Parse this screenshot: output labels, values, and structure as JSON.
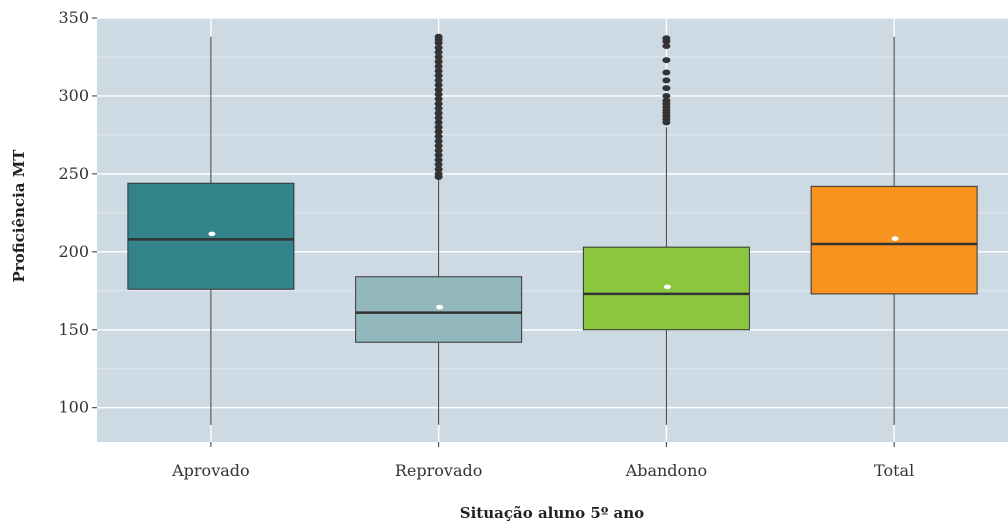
{
  "chart_data": {
    "type": "box",
    "title": "",
    "xlabel": "Situação aluno 5º ano",
    "ylabel": "Proficiência MT",
    "ylim": [
      78,
      350
    ],
    "yticks": [
      100,
      150,
      200,
      250,
      300,
      350
    ],
    "yticks_major_labeled": true,
    "grid": true,
    "legend": "none",
    "background_color": "#cddae4",
    "categories": [
      "Aprovado",
      "Reprovado",
      "Abandono",
      "Total"
    ],
    "boxes": [
      {
        "name": "Aprovado",
        "color": "#33838b",
        "whisker_low": 89,
        "q1": 176,
        "median": 208,
        "q3": 244,
        "whisker_high": 338,
        "mean": 211.5,
        "outliers": []
      },
      {
        "name": "Reprovado",
        "color": "#92b8bd",
        "whisker_low": 89,
        "q1": 142,
        "median": 161,
        "q3": 184,
        "whisker_high": 246,
        "mean": 164.5,
        "outliers": [
          248,
          250,
          253,
          256,
          259,
          262,
          265,
          268,
          271,
          274,
          277,
          280,
          283,
          286,
          289,
          292,
          295,
          298,
          301,
          304,
          307,
          310,
          313,
          316,
          319,
          322,
          325,
          328,
          331,
          334,
          336,
          338
        ]
      },
      {
        "name": "Abandono",
        "color": "#8cc63e",
        "whisker_low": 89,
        "q1": 150,
        "median": 173,
        "q3": 203,
        "whisker_high": 280,
        "mean": 177.5,
        "outliers": [
          283,
          285,
          287,
          289,
          291,
          293,
          295,
          297,
          300,
          305,
          310,
          315,
          323,
          332,
          335,
          337
        ]
      },
      {
        "name": "Total",
        "color": "#f7931e",
        "whisker_low": 89,
        "q1": 173,
        "median": 205,
        "q3": 242,
        "whisker_high": 338,
        "mean": 208.5,
        "outliers": []
      }
    ]
  }
}
